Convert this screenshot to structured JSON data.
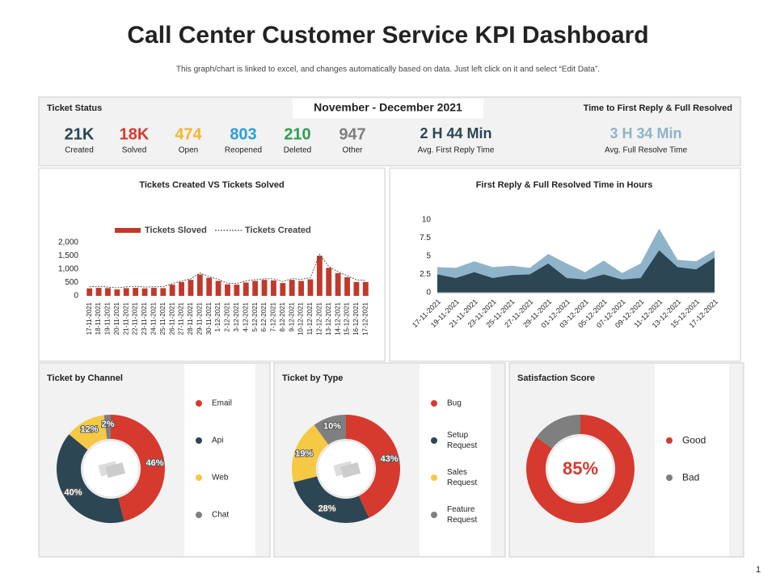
{
  "title": "Call Center Customer Service KPI Dashboard",
  "subtitle": "This graph/chart is linked to excel,  and changes automatically based on data. Just left click on it and select “Edit Data”.",
  "page_number": "1",
  "ticket_status": {
    "title": "Ticket Status",
    "period": "November - December 2021",
    "kpis": [
      {
        "value": "21K",
        "label": "Created",
        "color": "#2c4654"
      },
      {
        "value": "18K",
        "label": "Solved",
        "color": "#d63a2f"
      },
      {
        "value": "474",
        "label": "Open",
        "color": "#f4b630"
      },
      {
        "value": "803",
        "label": "Reopened",
        "color": "#2aa0d8"
      },
      {
        "value": "210",
        "label": "Deleted",
        "color": "#2e9e4f"
      },
      {
        "value": "947",
        "label": "Other",
        "color": "#7f7f7f"
      }
    ]
  },
  "reply_times": {
    "title": "Time to First Reply & Full Resolved",
    "stats": [
      {
        "value": "2 H 44 Min",
        "label": "Avg. First Reply Time",
        "color": "#2c4654"
      },
      {
        "value": "3 H 34 Min",
        "label": "Avg. Full Resolve Time",
        "color": "#8fb3c9"
      }
    ]
  },
  "chart_data": [
    {
      "type": "bar",
      "title": "Tickets Created  VS Tickets Solved",
      "categories": [
        "17-11-2021",
        "18-11-2021",
        "19-11-2021",
        "20-11-2021",
        "21-11-2021",
        "22-11-2021",
        "23-11-2021",
        "24-11-2021",
        "25-11-2021",
        "26-11-2021",
        "27-11-2021",
        "28-11-2021",
        "29-11-2021",
        "30-11-2021",
        "1-12-2021",
        "2-12-2021",
        "3-12-2021",
        "4-12-2021",
        "5-12-2021",
        "6-12-2021",
        "7-12-2021",
        "8-12-2021",
        "9-12-2021",
        "10-12-2021",
        "11-12-2021",
        "12-12-2021",
        "13-12-2021",
        "14-12-2021",
        "15-12-2021",
        "16-12-2021",
        "17-12-2021"
      ],
      "series": [
        {
          "name": "Tickets Sloved",
          "type": "bar",
          "color": "#c0392b",
          "values": [
            280,
            300,
            290,
            240,
            290,
            300,
            280,
            300,
            290,
            420,
            520,
            600,
            800,
            680,
            560,
            430,
            420,
            500,
            560,
            600,
            580,
            480,
            600,
            560,
            620,
            1500,
            1050,
            850,
            700,
            520,
            520
          ]
        },
        {
          "name": "Tickets Created",
          "type": "line",
          "color": "#333333",
          "values": [
            340,
            360,
            330,
            300,
            340,
            360,
            330,
            340,
            340,
            460,
            560,
            640,
            860,
            720,
            620,
            470,
            470,
            560,
            610,
            640,
            640,
            540,
            650,
            620,
            680,
            1560,
            1100,
            900,
            760,
            600,
            580
          ]
        }
      ],
      "ylim": [
        0,
        2000
      ],
      "yticks": [
        0,
        500,
        {
          "value": 1000,
          "label": "1,000"
        },
        {
          "value": 1500,
          "label": "1,500"
        },
        {
          "value": 2000,
          "label": "2,000"
        }
      ]
    },
    {
      "type": "area",
      "title": "First Reply & Full Resolved Time in Hours",
      "categories": [
        "17-11-2021",
        "19-11-2021",
        "21-11-2021",
        "23-11-2021",
        "25-11-2021",
        "27-11-2021",
        "29-11-2021",
        "01-12-2021",
        "03-12-2021",
        "05-12-2021",
        "07-12-2021",
        "09-12-2021",
        "11-12-2021",
        "13-12-2021",
        "15-12-2021",
        "17-12-2021"
      ],
      "series": [
        {
          "name": "Full Resolved",
          "color": "#8fb3c9",
          "values": [
            3.5,
            3.4,
            4.3,
            3.5,
            3.7,
            3.4,
            5.3,
            4.0,
            2.8,
            4.4,
            2.7,
            4.0,
            8.8,
            4.5,
            4.3,
            5.8
          ]
        },
        {
          "name": "First Reply",
          "color": "#2c4654",
          "values": [
            2.5,
            2.0,
            2.8,
            2.0,
            2.4,
            2.5,
            4.0,
            2.0,
            1.8,
            2.5,
            1.8,
            2.0,
            5.8,
            3.5,
            3.2,
            4.8
          ]
        }
      ],
      "ylim": [
        0,
        10
      ],
      "yticks": [
        0,
        2.5,
        5,
        7.5,
        10
      ]
    },
    {
      "type": "donut",
      "title": "Ticket by Channel",
      "categories": [
        "Email",
        "Api",
        "Web",
        "Chat"
      ],
      "values": [
        46,
        40,
        12,
        2
      ],
      "value_labels": [
        "46%",
        "40%",
        "12%",
        "2%"
      ],
      "colors": [
        "#d63a2f",
        "#2c4654",
        "#f6c945",
        "#7f7f7f"
      ]
    },
    {
      "type": "donut",
      "title": "Ticket by Type",
      "categories": [
        "Bug",
        "Setup Request",
        "Sales Request",
        "Feature Request"
      ],
      "values": [
        43,
        28,
        19,
        10
      ],
      "value_labels": [
        "43%",
        "28%",
        "19%",
        "10%"
      ],
      "colors": [
        "#d63a2f",
        "#2c4654",
        "#f6c945",
        "#7f7f7f"
      ]
    },
    {
      "type": "donut",
      "title": "Satisfaction Score",
      "categories": [
        "Good",
        "Bad"
      ],
      "values": [
        85,
        15
      ],
      "center_label": "85%",
      "colors": [
        "#d63a2f",
        "#7f7f7f"
      ]
    }
  ]
}
